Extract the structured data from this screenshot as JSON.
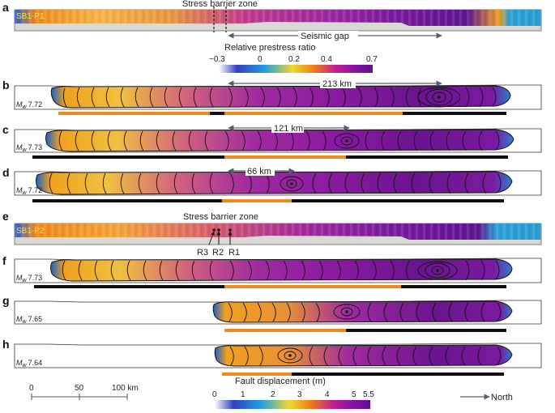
{
  "panels": [
    {
      "letter": "a",
      "type": "prestress",
      "tag": "SB1-P1",
      "barrier_label": "Stress barrier zone",
      "gap_label": "Seismic gap"
    },
    {
      "letter": "b",
      "type": "rupture",
      "mw_prefix": "M",
      "mw_sub": "w",
      "mw_value": "7.72",
      "distance_label": "213 km"
    },
    {
      "letter": "c",
      "type": "rupture",
      "mw_prefix": "M",
      "mw_sub": "w",
      "mw_value": "7.73",
      "distance_label": "121 km"
    },
    {
      "letter": "d",
      "type": "rupture",
      "mw_prefix": "M",
      "mw_sub": "w",
      "mw_value": "7.72",
      "distance_label": "66 km"
    },
    {
      "letter": "e",
      "type": "prestress",
      "tag": "SB1-P2",
      "barrier_label": "Stress barrier zone",
      "receivers": [
        "R3",
        "R2",
        "R1"
      ]
    },
    {
      "letter": "f",
      "type": "rupture",
      "mw_prefix": "M",
      "mw_sub": "w",
      "mw_value": "7.73"
    },
    {
      "letter": "g",
      "type": "rupture",
      "mw_prefix": "M",
      "mw_sub": "w",
      "mw_value": "7.65"
    },
    {
      "letter": "h",
      "type": "rupture",
      "mw_prefix": "M",
      "mw_sub": "w",
      "mw_value": "7.64"
    }
  ],
  "prestress_colorbar": {
    "title": "Relative prestress ratio",
    "ticks": [
      "−0.3",
      "0",
      "0.2",
      "0.4",
      "0.7"
    ],
    "colors": [
      "#ffffff",
      "#3040c0",
      "#20a0e0",
      "#f0d830",
      "#f07a18",
      "#c02090",
      "#8010a8",
      "#601090"
    ]
  },
  "displacement_colorbar": {
    "title": "Fault displacement (m)",
    "ticks": [
      "0",
      "1",
      "2",
      "3",
      "4",
      "5",
      "5.5"
    ],
    "colors": [
      "#ffffff",
      "#3040c0",
      "#20a0e0",
      "#f0d830",
      "#f07a18",
      "#c02090",
      "#8010a8",
      "#601090"
    ]
  },
  "scale_bar": {
    "ticks": [
      "0",
      "50",
      "100 km"
    ]
  },
  "north_label": "North",
  "colors": {
    "orange_bar": "#f08a1c",
    "black_bar": "#111111",
    "arrow": "#555e70"
  }
}
